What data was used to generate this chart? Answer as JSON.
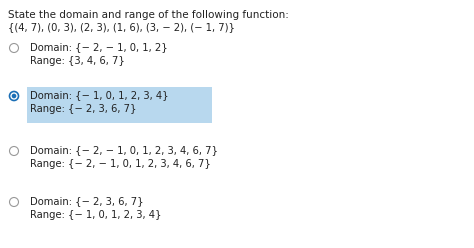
{
  "title": "State the domain and range of the following function:",
  "function_set": "{(4, 7), (0, 3), (2, 3), (1, 6), (3, − 2), (− 1, 7)}",
  "options": [
    {
      "domain": "Domain: {− 2, − 1, 0, 1, 2}",
      "range": "Range: {3, 4, 6, 7}",
      "selected": false,
      "highlight": false
    },
    {
      "domain": "Domain: {− 1, 0, 1, 2, 3, 4}",
      "range": "Range: {− 2, 3, 6, 7}",
      "selected": true,
      "highlight": true
    },
    {
      "domain": "Domain: {− 2, − 1, 0, 1, 2, 3, 4, 6, 7}",
      "range": "Range: {− 2, − 1, 0, 1, 2, 3, 4, 6, 7}",
      "selected": false,
      "highlight": false
    },
    {
      "domain": "Domain: {− 2, 3, 6, 7}",
      "range": "Range: {− 1, 0, 1, 2, 3, 4}",
      "selected": false,
      "highlight": false
    }
  ],
  "highlight_color": "#b8d8ee",
  "radio_selected_color": "#1a6eb5",
  "radio_unselected_color": "#ffffff",
  "radio_border_color": "#999999",
  "text_color": "#222222",
  "background_color": "#ffffff",
  "title_fontsize": 7.5,
  "body_fontsize": 7.2,
  "fig_width": 4.74,
  "fig_height": 2.48,
  "dpi": 100
}
